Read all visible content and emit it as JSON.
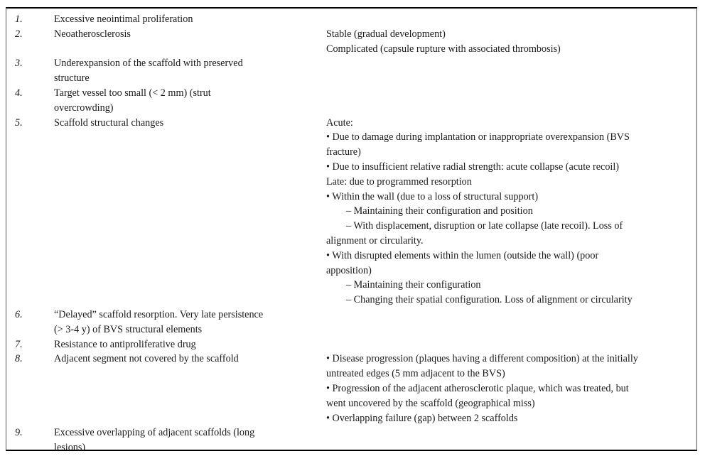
{
  "table": {
    "description_rows": [
      {
        "num": "1.",
        "item": "Excessive neointimal proliferation",
        "details": []
      },
      {
        "num": "2.",
        "item": "Neoatherosclerosis",
        "details": [
          {
            "t": "Stable (gradual development)",
            "i": 0
          },
          {
            "t": "Complicated (capsule rupture with associated thrombosis)",
            "i": 0
          }
        ]
      },
      {
        "num": "3.",
        "item": "Underexpansion of the scaffold with preserved\nstructure",
        "details": []
      },
      {
        "num": "4.",
        "item": "Target vessel too small (< 2 mm) (strut\novercrowding)",
        "details": []
      },
      {
        "num": "5.",
        "item": "Scaffold structural changes",
        "details": [
          {
            "t": "Acute:",
            "i": 0
          },
          {
            "t": "• Due to damage during implantation or inappropriate overexpansion (BVS",
            "i": 0
          },
          {
            "t": "fracture)",
            "i": 0
          },
          {
            "t": "• Due to insufficient relative radial strength: acute collapse (acute recoil)",
            "i": 0
          },
          {
            "t": "Late: due to programmed resorption",
            "i": 0
          },
          {
            "t": "• Within the wall (due to a loss of structural support)",
            "i": 0
          },
          {
            "t": "– Maintaining their configuration and position",
            "i": 1
          },
          {
            "t": "– With displacement, disruption or late collapse (late recoil). Loss of",
            "i": 1
          },
          {
            "t": "alignment or circularity.",
            "i": 0
          },
          {
            "t": "• With disrupted elements within the lumen (outside the wall) (poor",
            "i": 0
          },
          {
            "t": "apposition)",
            "i": 0
          },
          {
            "t": "– Maintaining their configuration",
            "i": 1
          },
          {
            "t": "– Changing their spatial configuration. Loss of alignment or circularity",
            "i": 1
          }
        ]
      },
      {
        "num": "6.",
        "item": "“Delayed” scaffold resorption. Very late persistence\n(> 3-4 y) of BVS structural elements",
        "details": []
      },
      {
        "num": "7.",
        "item": "Resistance to antiproliferative drug",
        "details": []
      },
      {
        "num": "8.",
        "item": "Adjacent segment not covered by the scaffold",
        "details": [
          {
            "t": "• Disease progression (plaques having a different composition) at the initially",
            "i": 0
          },
          {
            "t": "untreated edges (5 mm adjacent to the BVS)",
            "i": 0
          },
          {
            "t": "• Progression of the adjacent atherosclerotic plaque, which was treated, but",
            "i": 0
          },
          {
            "t": "went uncovered by the scaffold (geographical miss)",
            "i": 0
          },
          {
            "t": "• Overlapping failure (gap) between 2 scaffolds",
            "i": 0
          }
        ]
      },
      {
        "num": "9.",
        "item": "Excessive overlapping of adjacent scaffolds (long\nlesions)",
        "details": []
      }
    ]
  },
  "colors": {
    "text": "#1a1a1a",
    "border": "#000000",
    "background": "#ffffff"
  }
}
